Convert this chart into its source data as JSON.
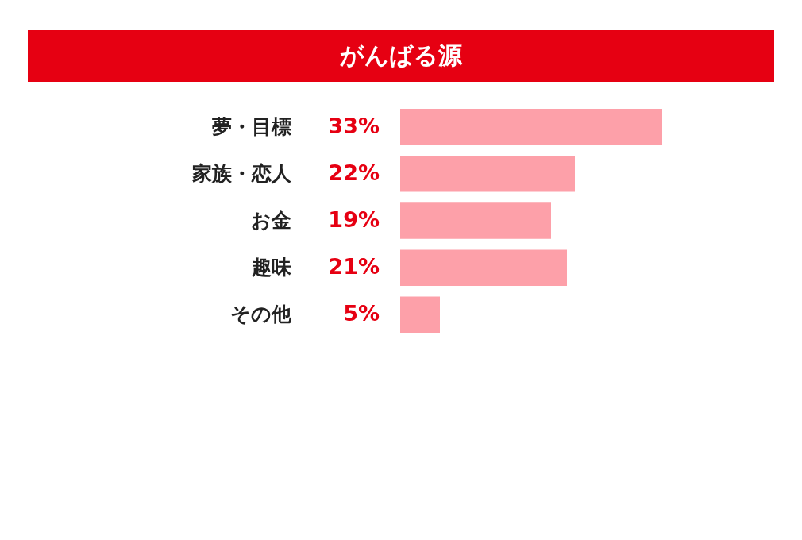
{
  "chart_data": {
    "type": "bar",
    "orientation": "horizontal",
    "title": "がんばる源",
    "categories": [
      "夢・目標",
      "家族・恋人",
      "お金",
      "趣味",
      "その他"
    ],
    "values": [
      33,
      22,
      19,
      21,
      5
    ],
    "value_labels": [
      "33%",
      "22%",
      "19%",
      "21%",
      "5%"
    ],
    "color": "#fda0a9",
    "grid": false
  }
}
